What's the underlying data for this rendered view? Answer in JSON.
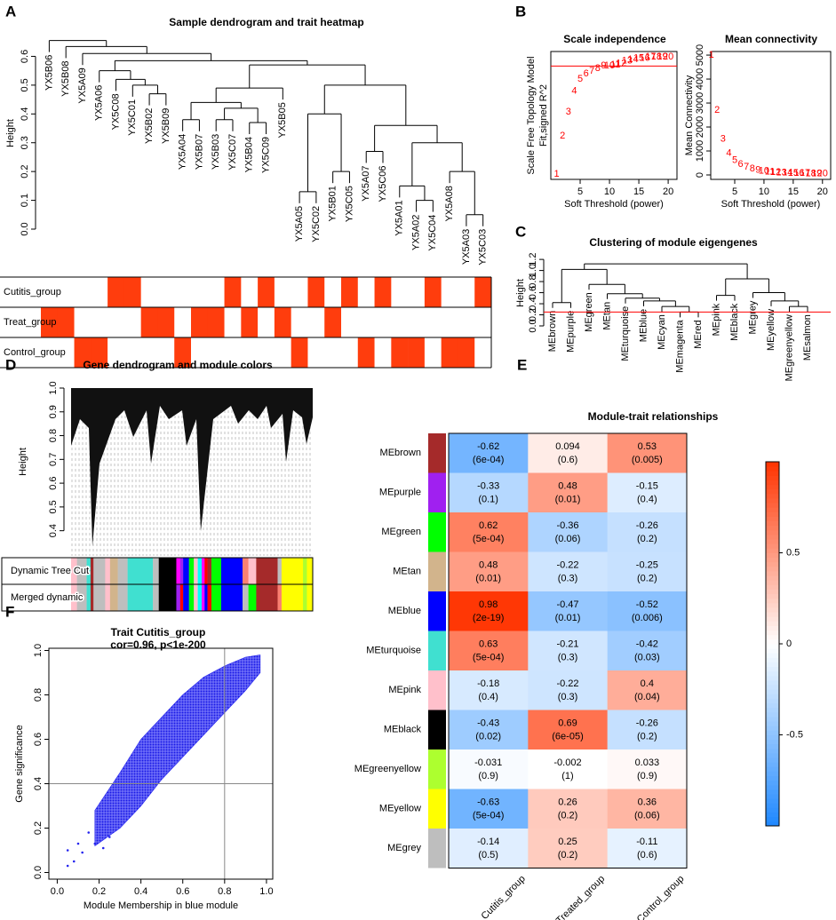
{
  "chart_data": [
    {
      "type": "dendrogram_heatmap",
      "panel": "A",
      "title": "Sample dendrogram and trait heatmap",
      "y_label": "Height",
      "ylim": [
        0,
        0.66
      ],
      "yticks": [
        {
          "value": 0,
          "label": "0.0"
        },
        0.1,
        0.2,
        0.3,
        0.4,
        0.5,
        0.6
      ],
      "leaves": [
        "YX5B06",
        "YX5B08",
        "YX5A09",
        "YX5A06",
        "YX5C08",
        "YX5C01",
        "YX5B02",
        "YX5B09",
        "YX5A04",
        "YX5B07",
        "YX5B03",
        "YX5C07",
        "YX5B04",
        "YX5C09",
        "YX5B05",
        "YX5A05",
        "YX5C02",
        "YX5B01",
        "YX5C05",
        "YX5A07",
        "YX5C06",
        "YX5A01",
        "YX5A02",
        "YX5C04",
        "YX5A08",
        "YX5A03",
        "YX5C03"
      ],
      "tree": [
        0,
        [
          1,
          [
            2,
            [
              [
                3,
                [
                  4,
                  [
                    5,
                    [
                      6,
                      7,
                      0.47
                    ],
                    0.5
                  ],
                  0.52
                ],
                0.55
              ],
              [
                [
                  [
                    [
                      8,
                      9,
                      0.38
                    ],
                    [
                      [
                        10,
                        11,
                        0.38
                      ],
                      [
                        12,
                        13,
                        0.37
                      ],
                      0.42
                    ],
                    0.44
                  ],
                  14,
                  0.49
                ],
                [
                  [
                    [
                      15,
                      16,
                      0.13
                    ],
                    [
                      17,
                      18,
                      0.2
                    ],
                    0.4
                  ],
                  [
                    [
                      19,
                      20,
                      0.27
                    ],
                    [
                      [
                        21,
                        [
                          22,
                          23,
                          0.1
                        ],
                        0.15
                      ],
                      [
                        24,
                        [
                          25,
                          26,
                          0.05
                        ],
                        0.2
                      ],
                      0.3
                    ],
                    0.36
                  ],
                  0.5
                ],
                0.57
              ],
              0.585
            ],
            0.61
          ],
          0.634
        ],
        0.655
      ],
      "traits": [
        {
          "name": "Cutitis_group",
          "color": "#ff3d0d",
          "values": [
            0,
            0,
            0,
            0,
            1,
            1,
            0,
            0,
            0,
            0,
            0,
            1,
            0,
            1,
            0,
            0,
            1,
            0,
            1,
            0,
            1,
            0,
            0,
            1,
            0,
            0,
            1
          ]
        },
        {
          "name": "Treat_group",
          "color": "#ff3d0d",
          "values": [
            1,
            1,
            0,
            0,
            0,
            0,
            1,
            1,
            0,
            1,
            1,
            0,
            1,
            0,
            1,
            0,
            0,
            1,
            0,
            0,
            0,
            0,
            0,
            0,
            0,
            0,
            0
          ]
        },
        {
          "name": "Control_group",
          "color": "#ff3d0d",
          "values": [
            0,
            0,
            1,
            1,
            0,
            0,
            0,
            0,
            1,
            0,
            0,
            0,
            0,
            0,
            0,
            1,
            0,
            0,
            0,
            1,
            0,
            1,
            1,
            0,
            1,
            1,
            0
          ]
        }
      ]
    },
    {
      "type": "text_scatter",
      "panel": "B",
      "title": "Scale independence",
      "x_label": "Soft Threshold (power)",
      "y_label": [
        "Scale Free Topology Model",
        "Fit,signed R^2"
      ],
      "color": "#ff0000",
      "hline": 0.85,
      "xlim": [
        0,
        21.5
      ],
      "ylim": [
        -0.01,
        0.96
      ],
      "xticks": [
        5,
        10,
        15,
        20
      ],
      "x": [
        1,
        2,
        3,
        4,
        5,
        6,
        7,
        8,
        9,
        10,
        11,
        12,
        13,
        14,
        15,
        16,
        17,
        18,
        19,
        20
      ],
      "values": [
        0.03,
        0.32,
        0.5,
        0.66,
        0.75,
        0.79,
        0.81,
        0.83,
        0.85,
        0.85,
        0.86,
        0.87,
        0.89,
        0.9,
        0.91,
        0.91,
        0.92,
        0.92,
        0.92,
        0.92
      ]
    },
    {
      "type": "text_scatter",
      "title": "Mean connectivity",
      "x_label": "Soft Threshold (power)",
      "y_label": [
        "Mean Connectivity"
      ],
      "color": "#ff0000",
      "xlim": [
        0.9,
        21.4
      ],
      "ylim": [
        -185,
        5150
      ],
      "xticks": [
        5,
        10,
        15,
        20
      ],
      "yticks": [
        0,
        1000,
        2000,
        3000,
        4000,
        5000
      ],
      "x": [
        1,
        2,
        3,
        4,
        5,
        6,
        7,
        8,
        9,
        10,
        11,
        12,
        13,
        14,
        15,
        16,
        17,
        18,
        19,
        20
      ],
      "values": [
        5000,
        2700,
        1500,
        900,
        600,
        450,
        330,
        260,
        200,
        160,
        130,
        110,
        95,
        85,
        75,
        70,
        65,
        60,
        55,
        50
      ]
    },
    {
      "type": "dendrogram",
      "panel": "C",
      "title": "Clustering of module eigengenes",
      "y_label": "Height",
      "ylim": [
        0,
        1.25
      ],
      "yticks": [
        {
          "value": 0,
          "label": "0.0"
        },
        0.2,
        0.4,
        0.6,
        0.8,
        {
          "value": 1,
          "label": "1.0"
        },
        1.2
      ],
      "cut_height": 0.25,
      "cut_color": "#ff0000",
      "leaves": [
        "MEbrown",
        "MEpurple",
        "MEgreen",
        "MEtan",
        "MEturquoise",
        "MEblue",
        "MEcyan",
        "MEmagenta",
        "MEred",
        "MEpink",
        "MEblack",
        "MEgrey",
        "MEyellow",
        "MEgreenyellow",
        "MEsalmon"
      ],
      "tree": [
        [
          [
            0,
            1,
            0.42
          ],
          [
            2,
            [
              3,
              [
                4,
                [
                  5,
                  [
                    6,
                    [
                      7,
                      8,
                      0.25
                    ],
                    0.35
                  ],
                  0.45
                ],
                0.5
              ],
              0.58
            ],
            0.75
          ],
          1.02
        ],
        [
          [
            9,
            10,
            0.55
          ],
          [
            11,
            [
              12,
              [
                13,
                14,
                0.35
              ],
              0.45
            ],
            0.6
          ],
          0.85
        ],
        1.12
      ]
    },
    {
      "type": "gene_dendrogram",
      "panel": "D",
      "title": "Gene dendrogram and module colors",
      "y_label": "Height",
      "ylim": [
        0.38,
        1.0
      ],
      "yticks": [
        0.4,
        0.5,
        0.6,
        0.7,
        0.8,
        0.9,
        {
          "value": 1,
          "label": "1.0"
        }
      ],
      "color_rows": [
        {
          "name": "Dynamic Tree Cut",
          "segments": [
            {
              "color": "#ffc0cb",
              "size": 6
            },
            {
              "color": "#bebebe",
              "size": 10
            },
            {
              "color": "#40e0d0",
              "size": 4
            },
            {
              "color": "#a52a2a",
              "size": 3
            },
            {
              "color": "#bebebe",
              "size": 12
            },
            {
              "color": "#ffc0cb",
              "size": 5
            },
            {
              "color": "#d2b48c",
              "size": 8
            },
            {
              "color": "#bebebe",
              "size": 10
            },
            {
              "color": "#40e0d0",
              "size": 26
            },
            {
              "color": "#bebebe",
              "size": 6
            },
            {
              "color": "#000000",
              "size": 18
            },
            {
              "color": "#ff00ff",
              "size": 4
            },
            {
              "color": "#a020f0",
              "size": 3
            },
            {
              "color": "#0000ff",
              "size": 6
            },
            {
              "color": "#00ff00",
              "size": 5
            },
            {
              "color": "#ffc0cb",
              "size": 4
            },
            {
              "color": "#00ffff",
              "size": 4
            },
            {
              "color": "#ff00ff",
              "size": 3
            },
            {
              "color": "#ff0000",
              "size": 3
            },
            {
              "color": "#a52a2a",
              "size": 4
            },
            {
              "color": "#00ff00",
              "size": 10
            },
            {
              "color": "#0000ff",
              "size": 22
            },
            {
              "color": "#fa8072",
              "size": 6
            },
            {
              "color": "#ffc0cb",
              "size": 8
            },
            {
              "color": "#a52a2a",
              "size": 22
            },
            {
              "color": "#bebebe",
              "size": 4
            },
            {
              "color": "#ffff00",
              "size": 22
            },
            {
              "color": "#adff2f",
              "size": 4
            },
            {
              "color": "#ffff00",
              "size": 6
            }
          ]
        },
        {
          "name": "Merged dynamic",
          "segments": [
            {
              "color": "#ffc0cb",
              "size": 6
            },
            {
              "color": "#bebebe",
              "size": 10
            },
            {
              "color": "#40e0d0",
              "size": 4
            },
            {
              "color": "#a52a2a",
              "size": 3
            },
            {
              "color": "#bebebe",
              "size": 12
            },
            {
              "color": "#ffc0cb",
              "size": 5
            },
            {
              "color": "#d2b48c",
              "size": 8
            },
            {
              "color": "#bebebe",
              "size": 10
            },
            {
              "color": "#40e0d0",
              "size": 26
            },
            {
              "color": "#bebebe",
              "size": 6
            },
            {
              "color": "#000000",
              "size": 18
            },
            {
              "color": "#a020f0",
              "size": 4
            },
            {
              "color": "#ff0000",
              "size": 3
            },
            {
              "color": "#0000ff",
              "size": 6
            },
            {
              "color": "#00ff00",
              "size": 5
            },
            {
              "color": "#ffc0cb",
              "size": 4
            },
            {
              "color": "#00ffff",
              "size": 4
            },
            {
              "color": "#ff00ff",
              "size": 3
            },
            {
              "color": "#0000ff",
              "size": 3
            },
            {
              "color": "#ff0000",
              "size": 4
            },
            {
              "color": "#00ff00",
              "size": 10
            },
            {
              "color": "#0000ff",
              "size": 22
            },
            {
              "color": "#bebebe",
              "size": 6
            },
            {
              "color": "#00ff00",
              "size": 8
            },
            {
              "color": "#a52a2a",
              "size": 22
            },
            {
              "color": "#fa8072",
              "size": 4
            },
            {
              "color": "#ffff00",
              "size": 22
            },
            {
              "color": "#adff2f",
              "size": 4
            },
            {
              "color": "#ffff00",
              "size": 6
            }
          ]
        }
      ]
    },
    {
      "type": "heatmap",
      "panel": "E",
      "title": "Module-trait relationships",
      "rows": [
        "MEbrown",
        "MEpurple",
        "MEgreen",
        "MEtan",
        "MEblue",
        "MEturquoise",
        "MEpink",
        "MEblack",
        "MEgreenyellow",
        "MEyellow",
        "MEgrey"
      ],
      "row_colors": [
        "#a52a2a",
        "#a020f0",
        "#00ff00",
        "#d2b48c",
        "#0000ff",
        "#40e0d0",
        "#ffc0cb",
        "#000000",
        "#adff2f",
        "#ffff00",
        "#bebebe"
      ],
      "zlim": [
        -1,
        1
      ],
      "zticks": [
        -0.5,
        0,
        0.5
      ],
      "colorscale": [
        "#1e88ff",
        "#ffffff",
        "#ff3300"
      ],
      "series": [
        {
          "name": "Cutitis_group",
          "values": [
            -0.62,
            -0.33,
            0.62,
            0.48,
            0.98,
            0.63,
            -0.18,
            -0.43,
            -0.031,
            -0.63,
            -0.14
          ],
          "p_values": [
            0.0006,
            0.1,
            0.0005,
            0.01,
            2e-19,
            0.0005,
            0.4,
            0.02,
            0.9,
            0.0005,
            0.5
          ],
          "p_value_labels": [
            "(6e-04)",
            "(0.1)",
            "(5e-04)",
            "(0.01)",
            "(2e-19)",
            "(5e-04)",
            "(0.4)",
            "(0.02)",
            "(0.9)",
            "(5e-04)",
            "(0.5)"
          ]
        },
        {
          "name": "Treated_group",
          "values": [
            0.094,
            0.48,
            -0.36,
            -0.22,
            -0.47,
            -0.21,
            -0.22,
            0.69,
            -0.002,
            0.26,
            0.25
          ],
          "p_values": [
            0.6,
            0.01,
            0.06,
            0.3,
            0.01,
            0.3,
            0.3,
            6e-05,
            1,
            0.2,
            0.2
          ],
          "p_value_labels": [
            "(0.6)",
            "(0.01)",
            "(0.06)",
            "(0.3)",
            "(0.01)",
            "(0.3)",
            "(0.3)",
            "(6e-05)",
            "(1)",
            "(0.2)",
            "(0.2)"
          ]
        },
        {
          "name": "Control_group",
          "values": [
            0.53,
            -0.15,
            -0.26,
            -0.25,
            -0.52,
            -0.42,
            0.4,
            -0.26,
            0.033,
            0.36,
            -0.11
          ],
          "p_values": [
            0.005,
            0.4,
            0.2,
            0.2,
            0.006,
            0.03,
            0.04,
            0.2,
            0.9,
            0.06,
            0.6
          ],
          "p_value_labels": [
            "(0.005)",
            "(0.4)",
            "(0.2)",
            "(0.2)",
            "(0.006)",
            "(0.03)",
            "(0.04)",
            "(0.2)",
            "(0.9)",
            "(0.06)",
            "(0.6)"
          ]
        }
      ]
    },
    {
      "type": "scatter_band",
      "panel": "F",
      "title": "Trait Cutitis_group",
      "subtitle": "cor=0.96, p<1e-200",
      "x_label": "Module Membership in blue module",
      "y_label": "Gene significance",
      "color": "#2424ee",
      "xlim": [
        -0.04,
        1.03
      ],
      "ylim": [
        -0.03,
        1.01
      ],
      "xticks": [
        {
          "value": 0,
          "label": "0.0"
        },
        0.2,
        0.4,
        0.6,
        0.8,
        {
          "value": 1,
          "label": "1.0"
        }
      ],
      "yticks": [
        {
          "value": 0,
          "label": "0.0"
        },
        0.2,
        0.4,
        0.6,
        0.8,
        {
          "value": 1,
          "label": "1.0"
        }
      ],
      "reference_lines": {
        "x": 0.8,
        "y": 0.4
      },
      "x": [
        0.05,
        0.05,
        0.08,
        0.1,
        0.12,
        0.15,
        0.18,
        0.22,
        0.25
      ],
      "y": [
        0.1,
        0.03,
        0.05,
        0.13,
        0.09,
        0.18,
        0.13,
        0.11,
        0.16
      ],
      "band": {
        "x": [
          0.18,
          0.3,
          0.4,
          0.5,
          0.6,
          0.7,
          0.8,
          0.9,
          0.97
        ],
        "lower": [
          0.12,
          0.2,
          0.3,
          0.42,
          0.52,
          0.62,
          0.72,
          0.82,
          0.9
        ],
        "upper": [
          0.28,
          0.45,
          0.6,
          0.7,
          0.8,
          0.88,
          0.93,
          0.97,
          0.98
        ]
      }
    }
  ]
}
